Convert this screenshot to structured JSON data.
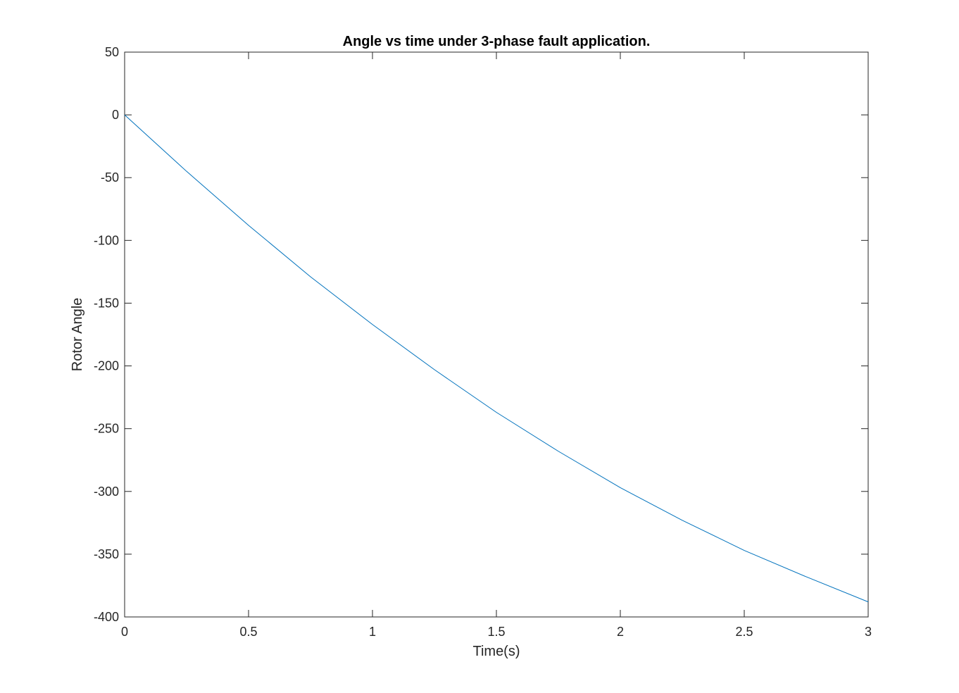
{
  "chart_data": {
    "type": "line",
    "title": "Angle vs time under 3-phase fault application.",
    "xlabel": "Time(s)",
    "ylabel": "Rotor Angle",
    "xlim": [
      0,
      3
    ],
    "ylim": [
      -400,
      50
    ],
    "xticks": [
      0,
      0.5,
      1,
      1.5,
      2,
      2.5,
      3
    ],
    "xtick_labels": [
      "0",
      "0.5",
      "1",
      "1.5",
      "2",
      "2.5",
      "3"
    ],
    "yticks": [
      50,
      0,
      -50,
      -100,
      -150,
      -200,
      -250,
      -300,
      -350,
      -400
    ],
    "ytick_labels": [
      "50",
      "0",
      "-50",
      "-100",
      "-150",
      "-200",
      "-250",
      "-300",
      "-350",
      "-400"
    ],
    "grid": false,
    "legend": false,
    "series": [
      {
        "color": "#0072bd",
        "x": [
          0,
          0.25,
          0.5,
          0.75,
          1,
          1.25,
          1.5,
          1.75,
          2,
          2.25,
          2.5,
          2.75,
          3
        ],
        "y": [
          0,
          -45,
          -88,
          -129,
          -167,
          -203,
          -237,
          -268,
          -297,
          -323,
          -347,
          -368,
          -388
        ]
      }
    ]
  }
}
